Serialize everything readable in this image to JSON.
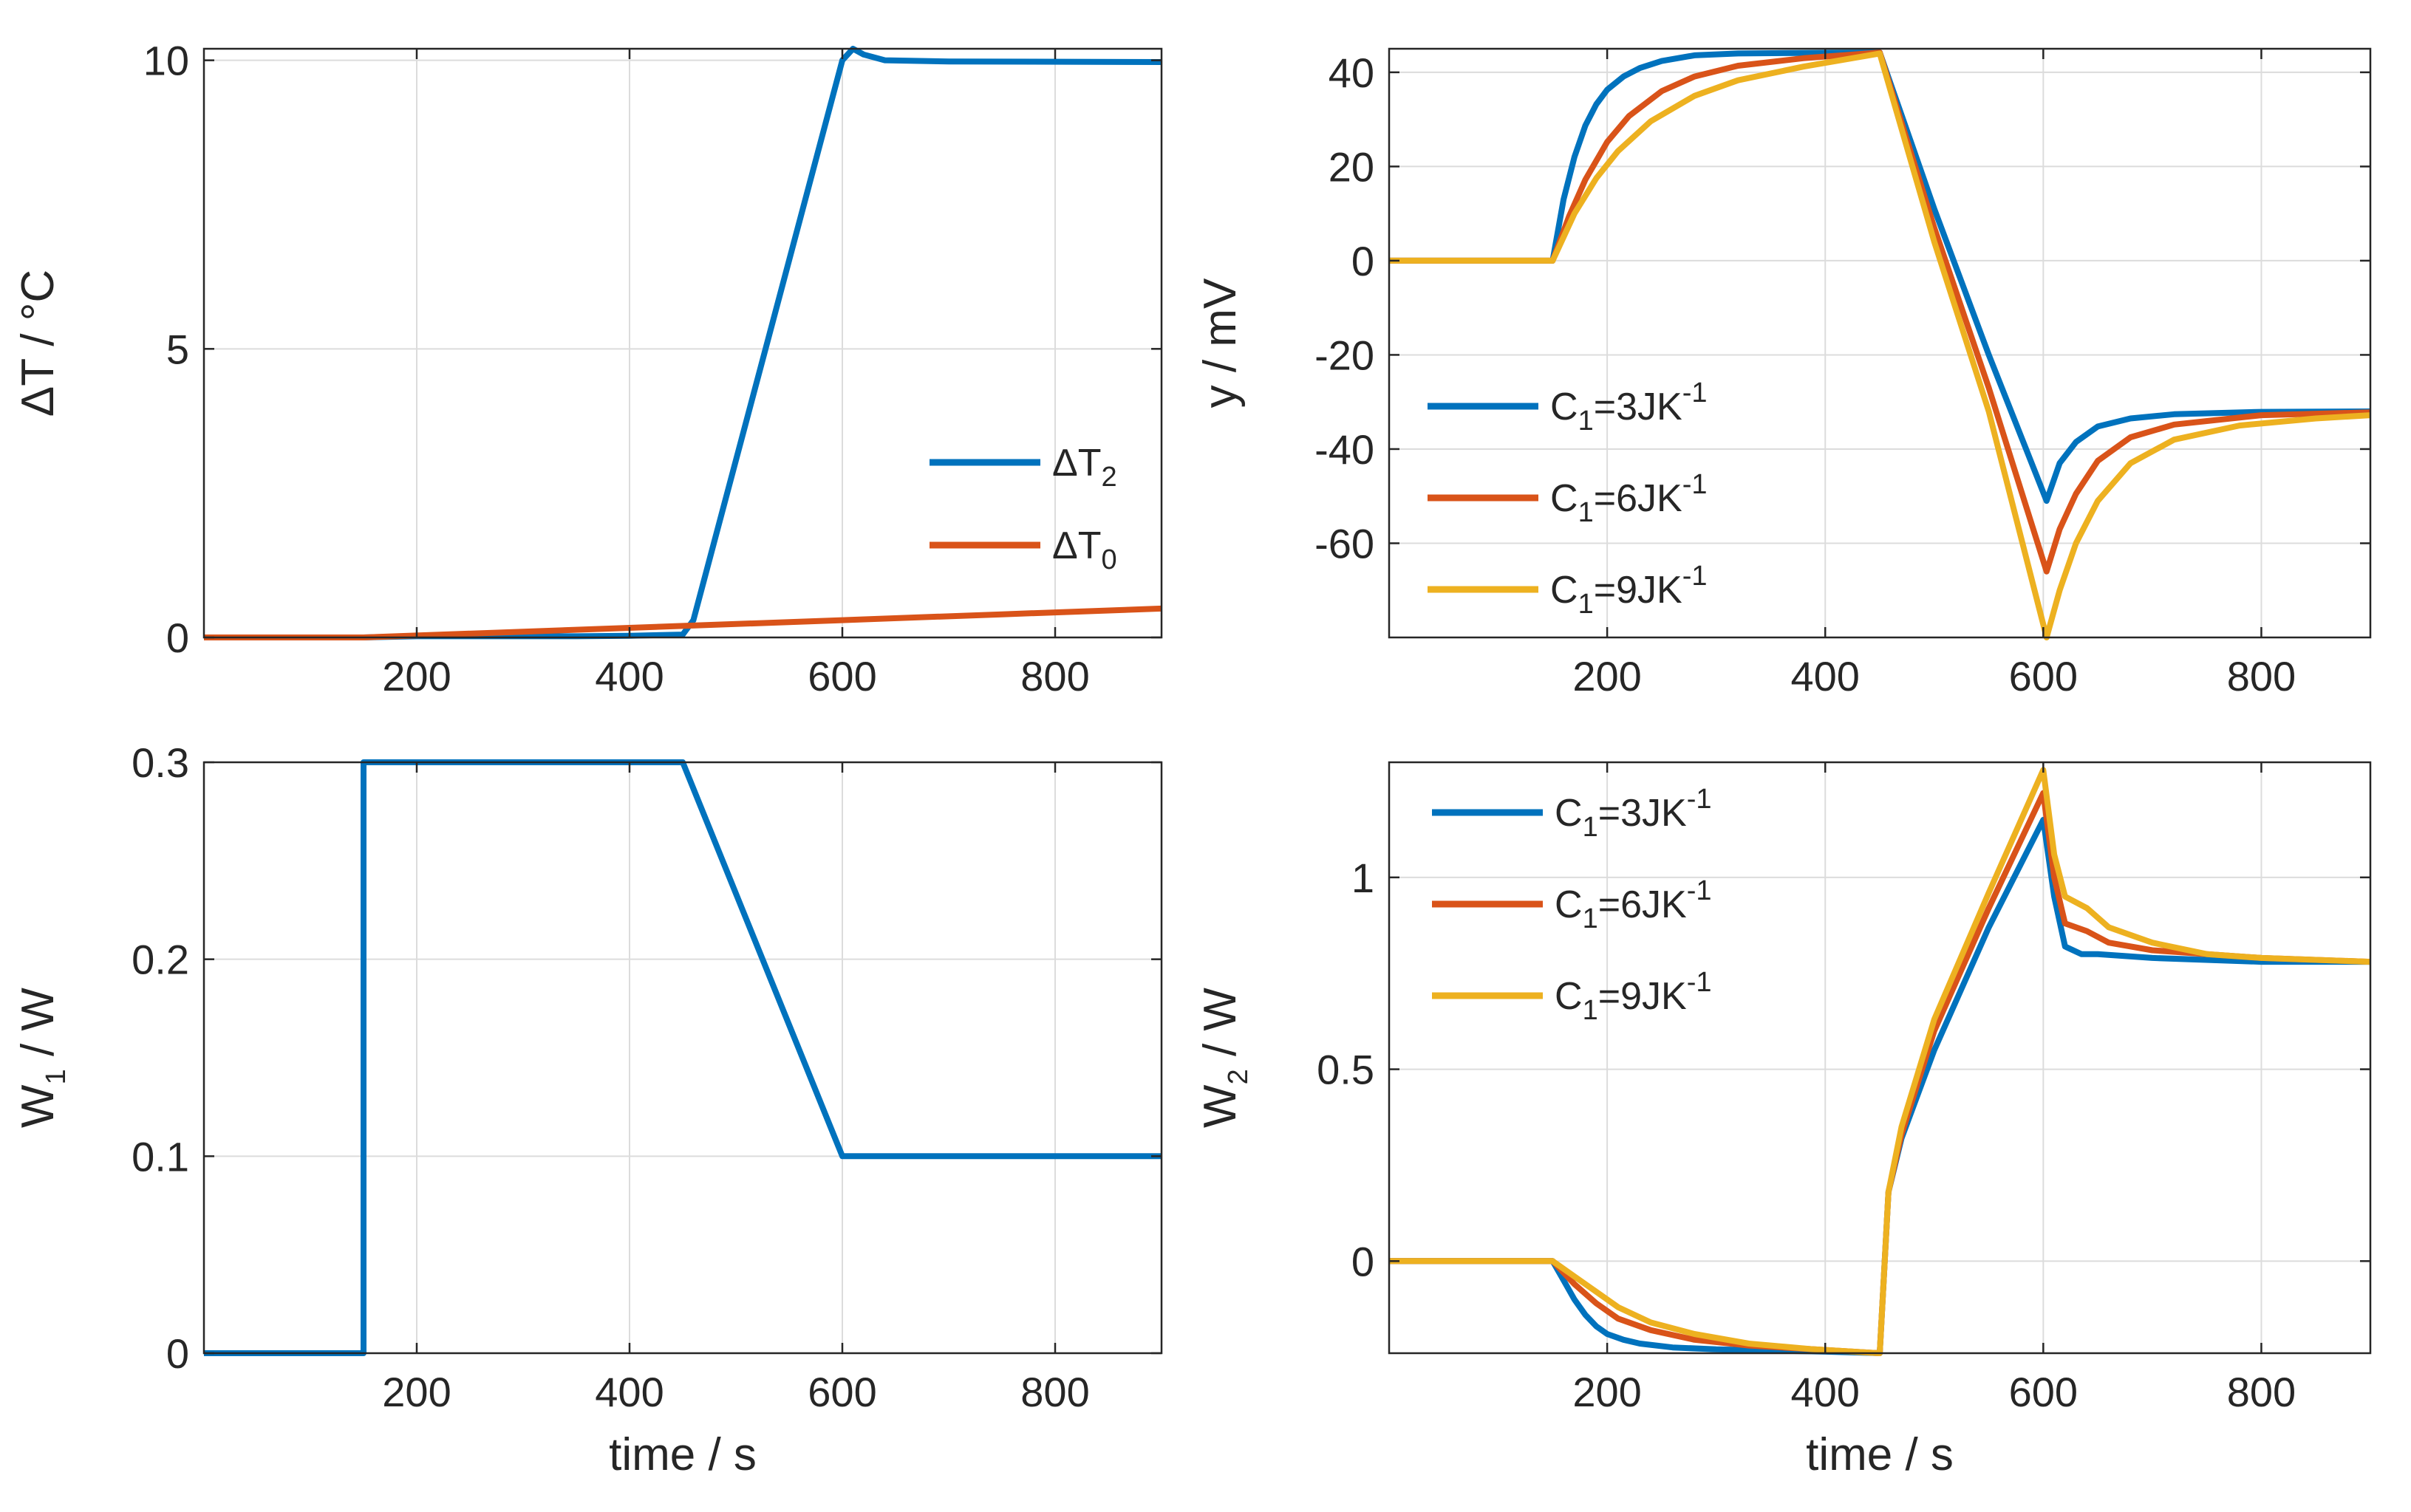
{
  "chart_data": [
    {
      "id": "dT",
      "type": "line",
      "xlabel": "time / s",
      "ylabel": "ΔT / °C",
      "xlim": [
        0,
        900
      ],
      "ylim": [
        0,
        10.2
      ],
      "xticks": [
        200,
        400,
        600,
        800
      ],
      "yticks": [
        0,
        5,
        10
      ],
      "legend_position": "right",
      "series": [
        {
          "name": "ΔT2",
          "label_main": "ΔT",
          "label_sub": "2",
          "color": "#0072BD",
          "x": [
            0,
            150,
            200,
            350,
            400,
            450,
            460,
            600,
            610,
            620,
            640,
            700,
            900
          ],
          "y": [
            0,
            0,
            0.02,
            0.02,
            0.03,
            0.05,
            0.3,
            10.0,
            10.2,
            10.1,
            10.0,
            9.98,
            9.97
          ]
        },
        {
          "name": "ΔT0",
          "label_main": "ΔT",
          "label_sub": "0",
          "color": "#D95319",
          "x": [
            0,
            150,
            300,
            450,
            600,
            750,
            900
          ],
          "y": [
            0,
            0,
            0.1,
            0.2,
            0.3,
            0.4,
            0.5
          ]
        }
      ]
    },
    {
      "id": "y",
      "type": "line",
      "xlabel": "",
      "ylabel": "y / mV",
      "xlim": [
        0,
        900
      ],
      "ylim": [
        -80,
        45
      ],
      "xticks": [
        200,
        400,
        600,
        800
      ],
      "yticks": [
        -60,
        -40,
        -20,
        0,
        20,
        40
      ],
      "legend_position": "left",
      "series": [
        {
          "name": "C1=3JK-1",
          "label_pre": "C",
          "label_sub": "1",
          "label_mid": "=3JK",
          "label_sup": "-1",
          "color": "#0072BD",
          "x": [
            0,
            150,
            160,
            170,
            180,
            190,
            200,
            215,
            230,
            250,
            280,
            320,
            380,
            450,
            500,
            550,
            603,
            615,
            630,
            650,
            680,
            720,
            800,
            900
          ],
          "y": [
            0,
            0,
            13,
            22,
            28.7,
            33.2,
            36.3,
            39.1,
            40.9,
            42.4,
            43.6,
            44.0,
            44.1,
            44.2,
            11,
            -20,
            -51,
            -43,
            -38.5,
            -35.2,
            -33.5,
            -32.6,
            -32.1,
            -32.0
          ]
        },
        {
          "name": "C1=6JK-1",
          "label_pre": "C",
          "label_sub": "1",
          "label_mid": "=6JK",
          "label_sup": "-1",
          "color": "#D95319",
          "x": [
            0,
            150,
            165,
            180,
            200,
            220,
            250,
            280,
            320,
            380,
            450,
            500,
            550,
            603,
            615,
            630,
            650,
            680,
            720,
            800,
            900
          ],
          "y": [
            0,
            0,
            9.4,
            17.2,
            25.2,
            30.7,
            36.0,
            39.1,
            41.4,
            43.0,
            44.2,
            7,
            -27,
            -66,
            -57,
            -49.5,
            -42.5,
            -37.5,
            -34.8,
            -32.8,
            -32.2
          ]
        },
        {
          "name": "C1=9JK-1",
          "label_pre": "C",
          "label_sub": "1",
          "label_mid": "=9JK",
          "label_sup": "-1",
          "color": "#EDB120",
          "x": [
            0,
            150,
            170,
            190,
            210,
            240,
            280,
            320,
            380,
            450,
            500,
            550,
            603,
            615,
            630,
            650,
            680,
            720,
            780,
            850,
            900
          ],
          "y": [
            0,
            0,
            10,
            17.5,
            23.3,
            29.6,
            35.0,
            38.3,
            41.2,
            44.0,
            4,
            -32,
            -80,
            -70,
            -60,
            -51,
            -43,
            -38,
            -35,
            -33.5,
            -32.8
          ]
        }
      ]
    },
    {
      "id": "W1",
      "type": "line",
      "xlabel": "time / s",
      "ylabel": "W1 / W",
      "ylabel_main": "W",
      "ylabel_sub": "1",
      "ylabel_rest": " / W",
      "xlim": [
        0,
        900
      ],
      "ylim": [
        0,
        0.3
      ],
      "xticks": [
        200,
        400,
        600,
        800
      ],
      "yticks": [
        0,
        0.1,
        0.2,
        0.3
      ],
      "yticklabels": [
        "0",
        "0.1",
        "0.2",
        "0.3"
      ],
      "series": [
        {
          "name": "W1",
          "color": "#0072BD",
          "x": [
            0,
            150,
            150,
            450,
            600,
            900
          ],
          "y": [
            0,
            0,
            0.3,
            0.3,
            0.1,
            0.1
          ]
        }
      ]
    },
    {
      "id": "W2",
      "type": "line",
      "xlabel": "time / s",
      "ylabel": "W2 / W",
      "ylabel_main": "W",
      "ylabel_sub": "2",
      "ylabel_rest": " / W",
      "xlim": [
        0,
        900
      ],
      "ylim": [
        -0.24,
        1.3
      ],
      "xticks": [
        200,
        400,
        600,
        800
      ],
      "yticks": [
        0,
        0.5,
        1
      ],
      "yticklabels": [
        "0",
        "0.5",
        "1"
      ],
      "legend_position": "top-left",
      "series": [
        {
          "name": "C1=3JK-1",
          "label_pre": "C",
          "label_sub": "1",
          "label_mid": "=3JK",
          "label_sup": "-1",
          "color": "#0072BD",
          "x": [
            0,
            150,
            160,
            170,
            180,
            190,
            200,
            215,
            230,
            260,
            300,
            350,
            400,
            450,
            458,
            470,
            500,
            550,
            600,
            610,
            620,
            635,
            650,
            700,
            800,
            900
          ],
          "y": [
            0,
            0,
            -0.05,
            -0.1,
            -0.14,
            -0.17,
            -0.19,
            -0.205,
            -0.215,
            -0.225,
            -0.23,
            -0.233,
            -0.236,
            -0.24,
            0.18,
            0.32,
            0.55,
            0.87,
            1.15,
            0.95,
            0.82,
            0.8,
            0.8,
            0.79,
            0.78,
            0.78
          ]
        },
        {
          "name": "C1=6JK-1",
          "label_pre": "C",
          "label_sub": "1",
          "label_mid": "=6JK",
          "label_sup": "-1",
          "color": "#D95319",
          "x": [
            0,
            150,
            170,
            190,
            210,
            240,
            280,
            330,
            390,
            450,
            458,
            470,
            500,
            550,
            600,
            610,
            620,
            640,
            660,
            700,
            750,
            800,
            900
          ],
          "y": [
            0,
            0,
            -0.06,
            -0.11,
            -0.15,
            -0.18,
            -0.205,
            -0.22,
            -0.23,
            -0.24,
            0.18,
            0.33,
            0.6,
            0.92,
            1.22,
            1.0,
            0.88,
            0.86,
            0.83,
            0.81,
            0.8,
            0.79,
            0.78
          ]
        },
        {
          "name": "C1=9JK-1",
          "label_pre": "C",
          "label_sub": "1",
          "label_mid": "=9JK",
          "label_sup": "-1",
          "color": "#EDB120",
          "x": [
            0,
            150,
            170,
            190,
            210,
            240,
            280,
            330,
            390,
            450,
            458,
            470,
            500,
            550,
            600,
            610,
            620,
            640,
            660,
            700,
            750,
            800,
            900
          ],
          "y": [
            0,
            0,
            -0.04,
            -0.08,
            -0.12,
            -0.16,
            -0.19,
            -0.215,
            -0.23,
            -0.24,
            0.18,
            0.35,
            0.63,
            0.96,
            1.28,
            1.06,
            0.95,
            0.92,
            0.87,
            0.83,
            0.8,
            0.79,
            0.78
          ]
        }
      ]
    }
  ]
}
